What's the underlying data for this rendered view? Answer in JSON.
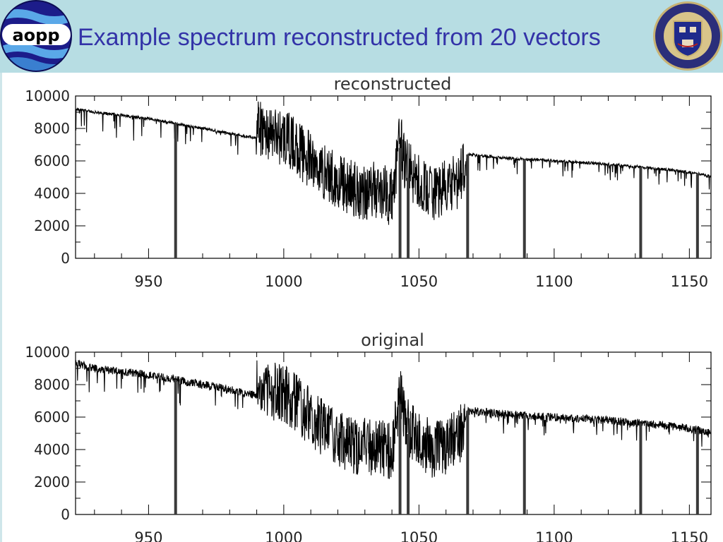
{
  "header": {
    "title": "Example spectrum reconstructed from 20 vectors",
    "logo_left": {
      "text": "aopp",
      "icon": "aopp-logo-icon"
    },
    "logo_right": {
      "icon": "oxford-crest-icon"
    },
    "background_color": "#b7dde3",
    "title_color": "#3333a8"
  },
  "chart_data": [
    {
      "type": "line",
      "title": "reconstructed",
      "xlabel": "",
      "ylabel": "",
      "xlim": [
        923,
        1158
      ],
      "ylim": [
        0,
        10000
      ],
      "xticks": [
        950,
        1000,
        1050,
        1100,
        1150
      ],
      "yticks": [
        0,
        2000,
        4000,
        6000,
        8000,
        10000
      ],
      "grid": false,
      "series": [
        {
          "x": [
            923,
            930,
            940,
            950,
            960,
            970,
            980,
            990,
            1000,
            1005,
            1010,
            1015,
            1020,
            1025,
            1030,
            1035,
            1040,
            1043,
            1045,
            1050,
            1055,
            1060,
            1065,
            1068,
            1075,
            1080,
            1090,
            1100,
            1110,
            1120,
            1130,
            1140,
            1150,
            1158
          ],
          "values": [
            9200,
            9000,
            8800,
            8600,
            8300,
            8000,
            7700,
            7400,
            6900,
            6300,
            5400,
            4800,
            4200,
            3800,
            3600,
            3700,
            3200,
            6800,
            5200,
            4000,
            3500,
            3700,
            4200,
            6400,
            6300,
            6200,
            6100,
            6000,
            5900,
            5800,
            5650,
            5500,
            5300,
            5050
          ],
          "absorption_lines": [
            960,
            1043,
            1046,
            1068,
            1089,
            1132,
            1153
          ]
        }
      ]
    },
    {
      "type": "line",
      "title": "original",
      "xlabel": "",
      "ylabel": "",
      "xlim": [
        923,
        1158
      ],
      "ylim": [
        0,
        10000
      ],
      "xticks": [
        950,
        1000,
        1050,
        1100,
        1150
      ],
      "yticks": [
        0,
        2000,
        4000,
        6000,
        8000,
        10000
      ],
      "grid": false,
      "series": [
        {
          "x": [
            923,
            930,
            940,
            950,
            960,
            970,
            980,
            990,
            1000,
            1005,
            1010,
            1015,
            1020,
            1025,
            1030,
            1035,
            1040,
            1043,
            1045,
            1050,
            1055,
            1060,
            1065,
            1068,
            1075,
            1080,
            1090,
            1100,
            1110,
            1120,
            1130,
            1140,
            1150,
            1158
          ],
          "values": [
            9300,
            9000,
            8800,
            8600,
            8300,
            8000,
            7700,
            7300,
            6900,
            6300,
            5400,
            4800,
            4200,
            3800,
            3600,
            3700,
            3200,
            6800,
            5200,
            4000,
            3500,
            3700,
            4200,
            6400,
            6300,
            6200,
            6100,
            6000,
            5900,
            5800,
            5650,
            5500,
            5300,
            5100
          ],
          "absorption_lines": [
            960,
            1043,
            1046,
            1068,
            1089,
            1132,
            1153
          ]
        }
      ]
    }
  ]
}
